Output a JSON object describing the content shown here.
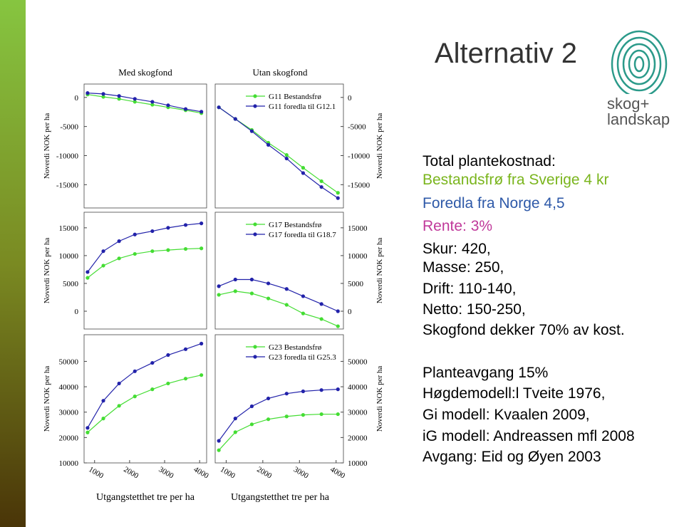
{
  "slide": {
    "title": "Alternativ 2",
    "logo": [
      "skog+",
      "landskap"
    ],
    "block1": [
      "Total plantekostnad:",
      "Bestandsfrø fra Sverige 4 kr",
      "Foredla fra Norge 4,5",
      "Rente: 3%",
      "Skur: 420,",
      "Masse: 250,",
      "Drift: 110-140,",
      "Netto: 150-250,",
      "Skogfond dekker 70% av kost."
    ],
    "block2": [
      "Planteavgang 15%",
      "Høgdemodell:l Tveite 1976,",
      "Gi modell: Kvaalen 2009,",
      "iG modell: Andreassen mfl 2008",
      "Avgang: Eid og Øyen 2003"
    ]
  },
  "chart_data": {
    "type": "line",
    "columns": [
      {
        "title": "Med skogfond",
        "x_label": "Utgangstetthet tre per ha"
      },
      {
        "title": "Utan skogfond",
        "x_label": "Utgangstetthet tre per ha"
      }
    ],
    "y_label": "Noverdi NOK per ha",
    "x": [
      800,
      1250,
      1700,
      2150,
      2650,
      3100,
      3600,
      4050
    ],
    "xlim": [
      700,
      4200
    ],
    "xticks": [
      1000,
      2000,
      3000,
      4000
    ],
    "rows": [
      {
        "series": [
          {
            "name": "G11 Bestandsfrø",
            "color": "#44dd33"
          },
          {
            "name": "G11 foredla til G12.1",
            "color": "#2222aa"
          }
        ],
        "ylim": [
          -19000,
          2300
        ],
        "yticks": [
          0,
          -5000,
          -10000,
          -15000
        ],
        "panels": [
          [
            [
              500,
              100,
              -250,
              -750,
              -1250,
              -1700,
              -2200,
              -2700
            ],
            [
              750,
              600,
              250,
              -250,
              -750,
              -1350,
              -2000,
              -2450
            ]
          ],
          [
            [
              -1700,
              -3700,
              -5600,
              -7800,
              -9900,
              -12100,
              -14400,
              -16400
            ],
            [
              -1700,
              -3700,
              -5800,
              -8150,
              -10500,
              -13000,
              -15400,
              -17300
            ]
          ]
        ]
      },
      {
        "series": [
          {
            "name": "G17 Bestandsfrø",
            "color": "#44dd33"
          },
          {
            "name": "G17 foredla til G18.7",
            "color": "#2222aa"
          }
        ],
        "ylim": [
          -3200,
          17800
        ],
        "yticks": [
          15000,
          10000,
          5000,
          0
        ],
        "panels": [
          [
            [
              6000,
              8200,
              9500,
              10300,
              10800,
              11000,
              11200,
              11300
            ],
            [
              7050,
              10800,
              12600,
              13800,
              14400,
              15000,
              15500,
              15800
            ]
          ],
          [
            [
              2950,
              3600,
              3200,
              2300,
              1150,
              -400,
              -1400,
              -2700
            ],
            [
              4500,
              5700,
              5700,
              5000,
              4000,
              2700,
              1300,
              0
            ]
          ]
        ]
      },
      {
        "series": [
          {
            "name": "G23 Bestandsfrø",
            "color": "#44dd33"
          },
          {
            "name": "G23 foredla til G25.3",
            "color": "#2222aa"
          }
        ],
        "ylim": [
          10000,
          60500
        ],
        "yticks": [
          50000,
          40000,
          30000,
          20000,
          10000
        ],
        "panels": [
          [
            [
              22000,
              27500,
              32500,
              36200,
              39000,
              41300,
              43200,
              44600
            ],
            [
              23800,
              34500,
              41300,
              46100,
              49400,
              52500,
              54800,
              57000
            ]
          ],
          [
            [
              15000,
              22100,
              25200,
              27200,
              28300,
              28900,
              29200,
              29200
            ],
            [
              18700,
              27500,
              32300,
              35400,
              37300,
              38200,
              38700,
              39000
            ]
          ]
        ]
      }
    ]
  }
}
